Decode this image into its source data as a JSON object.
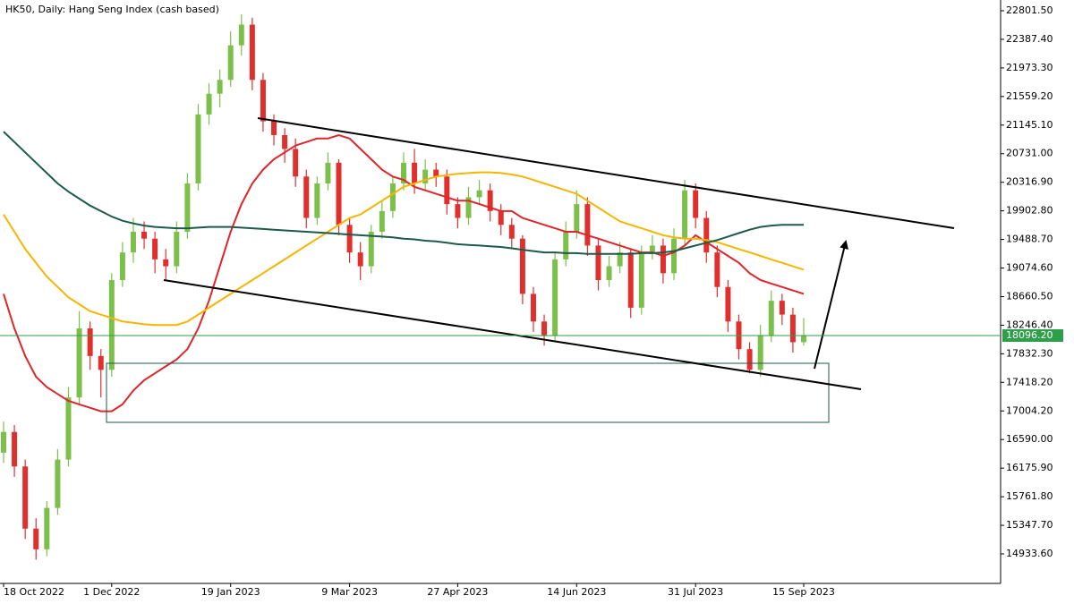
{
  "chart_data": {
    "type": "candlestick",
    "title": "HK50, Daily:  Hang Seng Index (cash based)",
    "categories": [
      "18 Oct 2022",
      null,
      null,
      null,
      null,
      null,
      null,
      null,
      null,
      null,
      "1 Dec 2022",
      null,
      null,
      null,
      null,
      null,
      null,
      null,
      null,
      null,
      null,
      "19 Jan 2023",
      null,
      null,
      null,
      null,
      null,
      null,
      null,
      null,
      null,
      null,
      "9 Mar 2023",
      null,
      null,
      null,
      null,
      null,
      null,
      null,
      null,
      null,
      "27 Apr 2023",
      null,
      null,
      null,
      null,
      null,
      null,
      null,
      null,
      null,
      null,
      "14 Jun 2023",
      null,
      null,
      null,
      null,
      null,
      null,
      null,
      null,
      null,
      null,
      "31 Jul 2023",
      null,
      null,
      null,
      null,
      null,
      null,
      null,
      null,
      null,
      "15 Sep 2023"
    ],
    "open": [
      16400,
      16700,
      16200,
      15300,
      15000,
      15600,
      16300,
      17200,
      18200,
      17800,
      17600,
      18900,
      19300,
      19600,
      19500,
      19200,
      19100,
      19600,
      20300,
      21300,
      21600,
      21800,
      22300,
      22600,
      21800,
      21200,
      21000,
      20800,
      20400,
      19800,
      20300,
      20600,
      19700,
      19300,
      19100,
      19600,
      19900,
      20300,
      20600,
      20300,
      20500,
      20400,
      20000,
      19800,
      20100,
      20200,
      19900,
      19700,
      19500,
      18700,
      18300,
      18100,
      19200,
      19600,
      20000,
      19400,
      18900,
      19100,
      19300,
      18500,
      19300,
      19400,
      19000,
      19500,
      20200,
      19800,
      19300,
      18800,
      18300,
      17900,
      17600,
      18100,
      18600,
      18400,
      18000
    ],
    "high": [
      16850,
      16800,
      16300,
      15450,
      15700,
      16450,
      17350,
      18450,
      18300,
      17900,
      19000,
      19450,
      19800,
      19750,
      19600,
      19350,
      19750,
      20450,
      21450,
      21750,
      21950,
      22500,
      22750,
      22700,
      21900,
      21300,
      21100,
      20950,
      20500,
      20400,
      20750,
      20650,
      19800,
      19450,
      19700,
      20050,
      20400,
      20750,
      20800,
      20650,
      20600,
      20500,
      20100,
      20250,
      20350,
      20300,
      20000,
      19800,
      19550,
      18800,
      18400,
      19300,
      19750,
      20200,
      20100,
      19500,
      19250,
      19450,
      19350,
      19400,
      19550,
      19500,
      19650,
      20350,
      20300,
      19900,
      19400,
      18900,
      18400,
      18000,
      18250,
      18750,
      18700,
      18500,
      18350
    ],
    "low": [
      16250,
      16050,
      15150,
      14850,
      14900,
      15500,
      16200,
      17100,
      17600,
      17200,
      17500,
      18800,
      19150,
      19350,
      19000,
      18900,
      19000,
      19500,
      20200,
      21150,
      21400,
      21700,
      22150,
      21650,
      21050,
      20850,
      20600,
      20250,
      19650,
      19700,
      20200,
      19550,
      19150,
      18900,
      19000,
      19500,
      19800,
      20200,
      20150,
      20200,
      20250,
      19850,
      19650,
      19700,
      20000,
      19750,
      19550,
      19350,
      18550,
      18150,
      17950,
      18000,
      19100,
      19500,
      19250,
      18750,
      18800,
      19000,
      18350,
      18400,
      19200,
      18850,
      18900,
      19400,
      19650,
      19150,
      18650,
      18150,
      17750,
      17550,
      17500,
      18000,
      18250,
      17850,
      17950
    ],
    "close": [
      16700,
      16200,
      15300,
      15000,
      15600,
      16300,
      17200,
      18200,
      17800,
      17600,
      18900,
      19300,
      19600,
      19500,
      19200,
      19100,
      19600,
      20300,
      21300,
      21600,
      21800,
      22300,
      22600,
      21800,
      21200,
      21000,
      20800,
      20400,
      19800,
      20300,
      20600,
      19700,
      19300,
      19100,
      19600,
      19900,
      20300,
      20600,
      20300,
      20500,
      20400,
      20000,
      19800,
      20100,
      20200,
      19900,
      19700,
      19500,
      18700,
      18300,
      18100,
      19200,
      19600,
      20000,
      19400,
      18900,
      19100,
      19300,
      18500,
      19300,
      19400,
      19000,
      19500,
      20200,
      19800,
      19300,
      18800,
      18300,
      17900,
      17600,
      18100,
      18600,
      18400,
      18000,
      18096.2
    ],
    "up_color": "#7cc04b",
    "down_color": "#e0302e",
    "series": [
      {
        "color": "#e0252a",
        "values": [
          18700,
          18200,
          17800,
          17500,
          17350,
          17250,
          17150,
          17100,
          17050,
          17000,
          17000,
          17100,
          17300,
          17450,
          17550,
          17650,
          17750,
          17900,
          18200,
          18600,
          19100,
          19600,
          20000,
          20300,
          20500,
          20650,
          20750,
          20850,
          20900,
          20950,
          20950,
          21000,
          20950,
          20800,
          20650,
          20500,
          20400,
          20350,
          20250,
          20200,
          20150,
          20100,
          20050,
          20050,
          20000,
          19950,
          19900,
          19900,
          19800,
          19750,
          19700,
          19650,
          19600,
          19600,
          19550,
          19500,
          19450,
          19400,
          19350,
          19300,
          19300,
          19250,
          19300,
          19400,
          19550,
          19450,
          19350,
          19250,
          19150,
          19000,
          18900,
          18850,
          18800,
          18750,
          18700
        ]
      },
      {
        "color": "#f7b500",
        "values": [
          19850,
          19600,
          19350,
          19150,
          18950,
          18800,
          18650,
          18550,
          18450,
          18400,
          18350,
          18300,
          18280,
          18260,
          18250,
          18250,
          18250,
          18300,
          18400,
          18500,
          18600,
          18700,
          18800,
          18900,
          19000,
          19100,
          19200,
          19300,
          19400,
          19500,
          19600,
          19700,
          19800,
          19850,
          19950,
          20050,
          20150,
          20250,
          20300,
          20350,
          20400,
          20420,
          20440,
          20450,
          20460,
          20460,
          20450,
          20430,
          20400,
          20350,
          20300,
          20250,
          20200,
          20150,
          20050,
          19950,
          19850,
          19750,
          19700,
          19650,
          19600,
          19550,
          19520,
          19500,
          19500,
          19480,
          19450,
          19400,
          19350,
          19300,
          19250,
          19200,
          19150,
          19100,
          19050
        ]
      },
      {
        "color": "#1d5a4c",
        "values": [
          21050,
          20900,
          20750,
          20600,
          20450,
          20300,
          20180,
          20080,
          19980,
          19900,
          19820,
          19760,
          19720,
          19690,
          19670,
          19660,
          19650,
          19650,
          19660,
          19670,
          19670,
          19670,
          19660,
          19650,
          19640,
          19630,
          19620,
          19610,
          19600,
          19590,
          19580,
          19570,
          19560,
          19550,
          19540,
          19530,
          19520,
          19500,
          19490,
          19470,
          19460,
          19440,
          19420,
          19410,
          19400,
          19390,
          19380,
          19360,
          19340,
          19320,
          19300,
          19300,
          19290,
          19290,
          19280,
          19280,
          19280,
          19280,
          19280,
          19290,
          19290,
          19300,
          19320,
          19360,
          19400,
          19440,
          19480,
          19530,
          19580,
          19630,
          19670,
          19690,
          19700,
          19700,
          19700
        ]
      }
    ],
    "last_price": {
      "value": 18096.2,
      "label": "18096.20"
    },
    "last_price_color": "#2e9e4a",
    "ylim": [
      14532,
      22957
    ],
    "yticks": [
      {
        "value": 22801.5,
        "label": "22801.50"
      },
      {
        "value": 22387.4,
        "label": "22387.40"
      },
      {
        "value": 21973.3,
        "label": "21973.30"
      },
      {
        "value": 21559.2,
        "label": "21559.20"
      },
      {
        "value": 21145.1,
        "label": "21145.10"
      },
      {
        "value": 20731,
        "label": "20731.00"
      },
      {
        "value": 20316.9,
        "label": "20316.90"
      },
      {
        "value": 19902.8,
        "label": "19902.80"
      },
      {
        "value": 19488.7,
        "label": "19488.70"
      },
      {
        "value": 19074.6,
        "label": "19074.60"
      },
      {
        "value": 18660.5,
        "label": "18660.50"
      },
      {
        "value": 18246.4,
        "label": "18246.40"
      },
      {
        "value": 17832.3,
        "label": "17832.30"
      },
      {
        "value": 17418.2,
        "label": "17418.20"
      },
      {
        "value": 17004.2,
        "label": "17004.20"
      },
      {
        "value": 16590,
        "label": "16590.00"
      },
      {
        "value": 16175.9,
        "label": "16175.90"
      },
      {
        "value": 15761.8,
        "label": "15761.80"
      },
      {
        "value": 15347.7,
        "label": "15347.70"
      },
      {
        "value": 14933.6,
        "label": "14933.60"
      }
    ],
    "grid": false
  }
}
